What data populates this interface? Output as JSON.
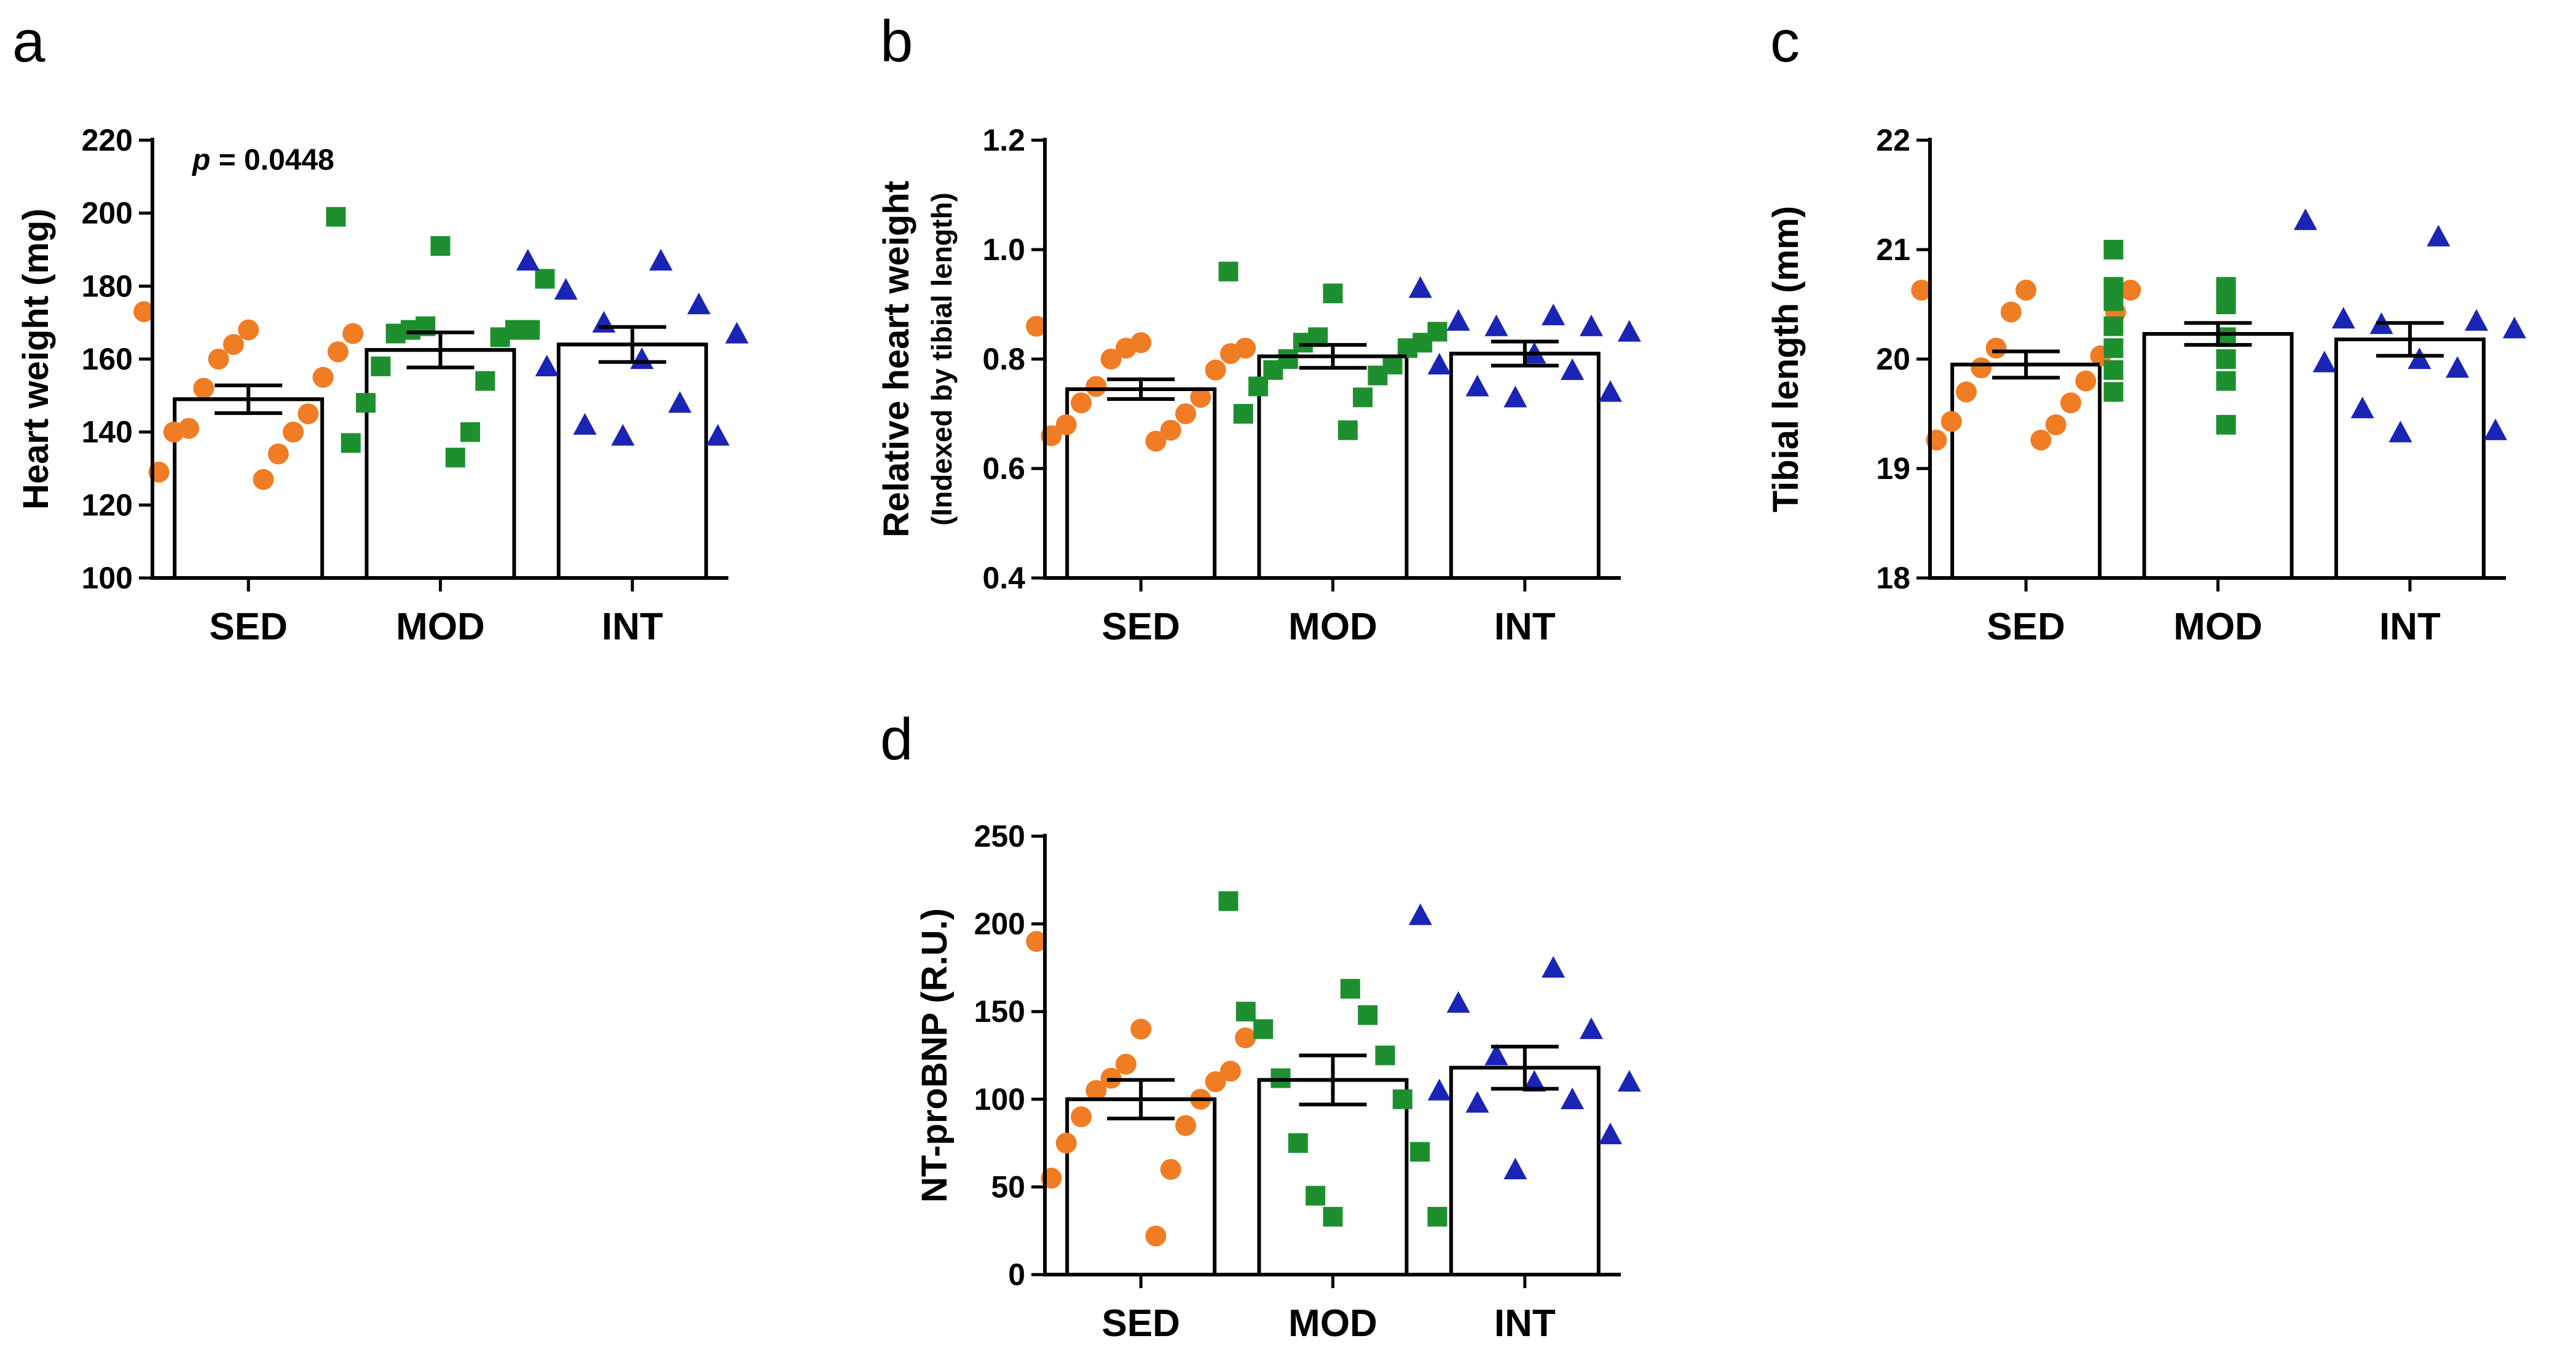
{
  "colors": {
    "SED": "#f07c24",
    "MOD": "#1e8f2e",
    "INT": "#1a24b5",
    "axis": "#000000",
    "bar_fill": "#ffffff"
  },
  "markers": {
    "SED": "circle",
    "MOD": "square",
    "INT": "triangle"
  },
  "chart_data": [
    {
      "panel": "a",
      "type": "bar",
      "ylabel": "Heart weight (mg)",
      "ylabel_sub": "",
      "ylim": [
        100,
        220
      ],
      "yticks": [
        100,
        120,
        140,
        160,
        180,
        200,
        220
      ],
      "ytick_labels": [
        "100",
        "120",
        "140",
        "160",
        "180",
        "200",
        "220"
      ],
      "annotation": "p = 0.0448",
      "categories": [
        "SED",
        "MOD",
        "INT"
      ],
      "means": [
        149,
        162.5,
        164
      ],
      "sem": [
        3.8,
        4.8,
        4.8
      ],
      "points": [
        [
          173,
          168,
          167,
          164,
          162,
          160,
          155,
          152,
          145,
          141,
          140,
          140,
          134,
          129,
          127
        ],
        [
          199,
          191,
          182,
          169,
          168,
          168,
          168,
          167,
          166,
          158,
          154,
          148,
          140,
          137,
          133
        ],
        [
          187,
          187,
          179,
          175,
          170,
          167,
          160,
          158,
          148,
          142,
          139,
          139
        ]
      ]
    },
    {
      "panel": "b",
      "type": "bar",
      "ylabel": "Relative heart weight",
      "ylabel_sub": "(Indexed by tibial length)",
      "ylim": [
        0.4,
        1.2
      ],
      "yticks": [
        0.4,
        0.6,
        0.8,
        1.0,
        1.2
      ],
      "ytick_labels": [
        "0.4",
        "0.6",
        "0.8",
        "1.0",
        "1.2"
      ],
      "annotation": "",
      "categories": [
        "SED",
        "MOD",
        "INT"
      ],
      "means": [
        0.745,
        0.805,
        0.81
      ],
      "sem": [
        0.018,
        0.021,
        0.022
      ],
      "points": [
        [
          0.86,
          0.83,
          0.82,
          0.82,
          0.81,
          0.8,
          0.78,
          0.75,
          0.73,
          0.72,
          0.7,
          0.68,
          0.67,
          0.66,
          0.65
        ],
        [
          0.96,
          0.92,
          0.85,
          0.84,
          0.83,
          0.83,
          0.82,
          0.8,
          0.79,
          0.78,
          0.77,
          0.75,
          0.73,
          0.7,
          0.67
        ],
        [
          0.93,
          0.88,
          0.87,
          0.86,
          0.86,
          0.85,
          0.81,
          0.79,
          0.78,
          0.75,
          0.74,
          0.73
        ]
      ]
    },
    {
      "panel": "c",
      "type": "bar",
      "ylabel": "Tibial length (mm)",
      "ylabel_sub": "",
      "ylim": [
        18,
        22
      ],
      "yticks": [
        18,
        19,
        20,
        21,
        22
      ],
      "ytick_labels": [
        "18",
        "19",
        "20",
        "21",
        "22"
      ],
      "annotation": "",
      "categories": [
        "SED",
        "MOD",
        "INT"
      ],
      "means": [
        19.95,
        20.23,
        20.18
      ],
      "sem": [
        0.12,
        0.1,
        0.15
      ],
      "points": [
        [
          20.63,
          20.63,
          20.63,
          20.43,
          20.43,
          20.1,
          20.03,
          19.92,
          19.8,
          19.7,
          19.6,
          19.43,
          19.4,
          19.26,
          19.26
        ],
        [
          21.0,
          20.66,
          20.66,
          20.6,
          20.53,
          20.5,
          20.3,
          20.2,
          20.1,
          20.0,
          19.9,
          19.8,
          19.7,
          19.4
        ],
        [
          21.27,
          21.12,
          20.37,
          20.35,
          20.32,
          20.28,
          20.0,
          19.97,
          19.92,
          19.55,
          19.35,
          19.33
        ]
      ]
    },
    {
      "panel": "d",
      "type": "bar",
      "ylabel": "NT-proBNP (R.U.)",
      "ylabel_sub": "",
      "ylim": [
        0,
        250
      ],
      "yticks": [
        0,
        50,
        100,
        150,
        200,
        250
      ],
      "ytick_labels": [
        "0",
        "50",
        "100",
        "150",
        "200",
        "250"
      ],
      "annotation": "",
      "categories": [
        "SED",
        "MOD",
        "INT"
      ],
      "means": [
        100,
        111,
        118
      ],
      "sem": [
        11,
        14,
        12
      ],
      "points": [
        [
          190,
          140,
          135,
          120,
          116,
          112,
          110,
          105,
          100,
          90,
          85,
          75,
          60,
          55,
          22
        ],
        [
          213,
          163,
          150,
          148,
          140,
          125,
          112,
          100,
          75,
          70,
          45,
          33,
          33
        ],
        [
          205,
          175,
          155,
          140,
          125,
          110,
          110,
          105,
          100,
          98,
          80,
          60
        ]
      ]
    }
  ]
}
